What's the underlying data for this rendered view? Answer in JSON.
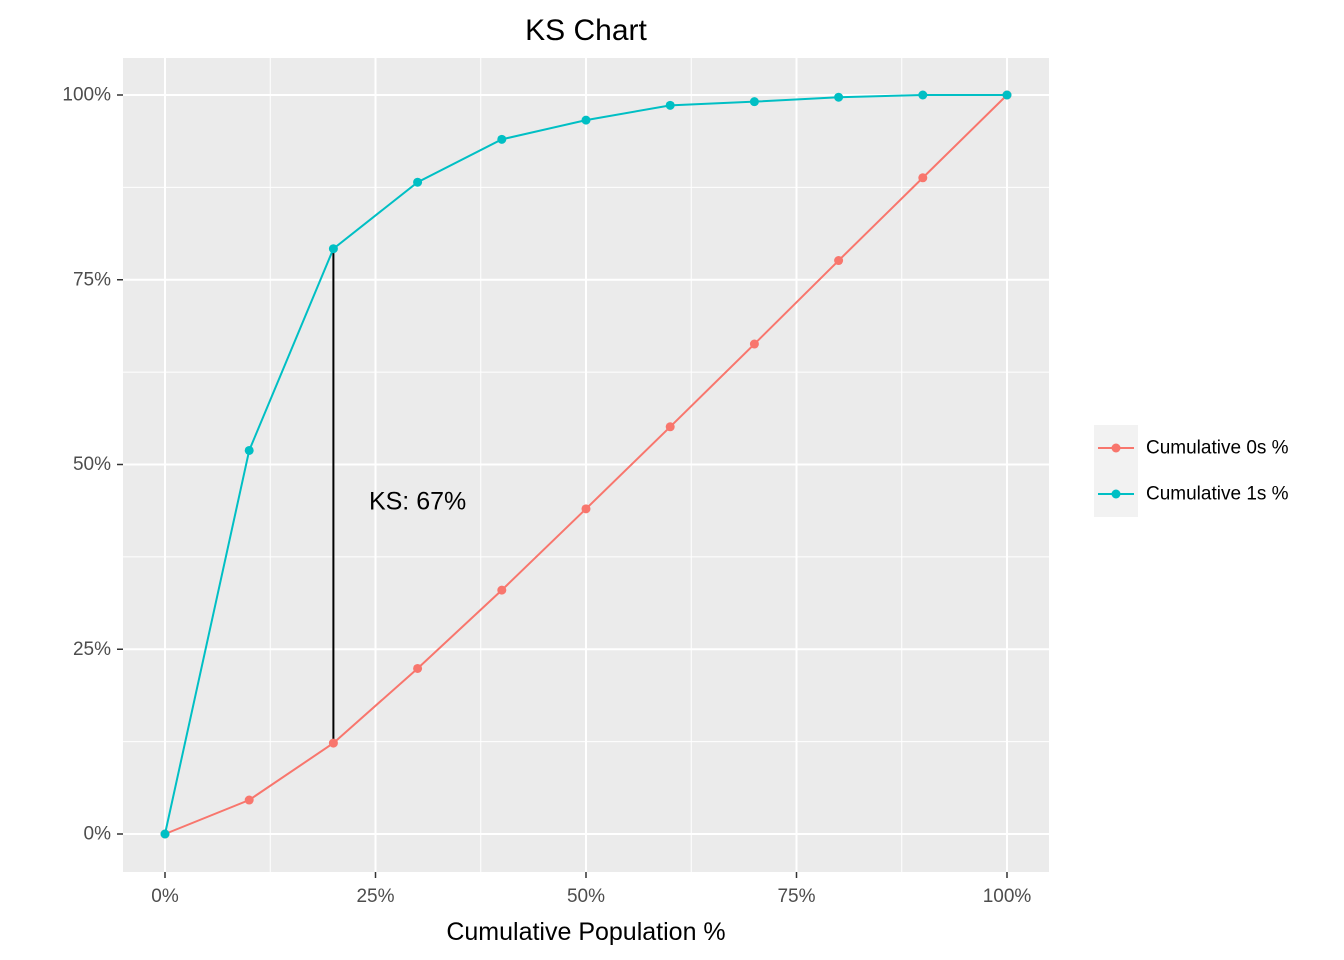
{
  "chart_data": {
    "type": "line",
    "title": "KS Chart",
    "xlabel": "Cumulative Population %",
    "ylabel": "",
    "xlim": [
      -0.1,
      1.05
    ],
    "ylim": [
      -0.1,
      1.05
    ],
    "grid": true,
    "x_ticks": [
      0,
      0.25,
      0.5,
      0.75,
      1.0
    ],
    "x_tick_labels": [
      "0%",
      "25%",
      "50%",
      "75%",
      "100%"
    ],
    "y_ticks": [
      0,
      0.25,
      0.5,
      0.75,
      1.0
    ],
    "y_tick_labels": [
      "0%",
      "25%",
      "50%",
      "75%",
      "100%"
    ],
    "x": [
      0,
      0.1,
      0.2,
      0.3,
      0.4,
      0.5,
      0.6,
      0.7,
      0.8,
      0.9,
      1.0
    ],
    "series": [
      {
        "name": "Cumulative 0s %",
        "color": "#F8766D",
        "values": [
          0,
          0.046,
          0.123,
          0.224,
          0.33,
          0.44,
          0.551,
          0.663,
          0.776,
          0.888,
          1.0
        ]
      },
      {
        "name": "Cumulative 1s %",
        "color": "#00BFC4",
        "values": [
          0,
          0.519,
          0.792,
          0.882,
          0.94,
          0.966,
          0.986,
          0.991,
          0.997,
          1.0,
          1.0
        ]
      }
    ],
    "ks_line": {
      "x": 0.2,
      "y_low": 0.123,
      "y_high": 0.792,
      "color": "#000000"
    },
    "annotation": {
      "text": "KS: 67%",
      "x": 0.3,
      "y": 0.45
    },
    "legend_position": "right"
  }
}
